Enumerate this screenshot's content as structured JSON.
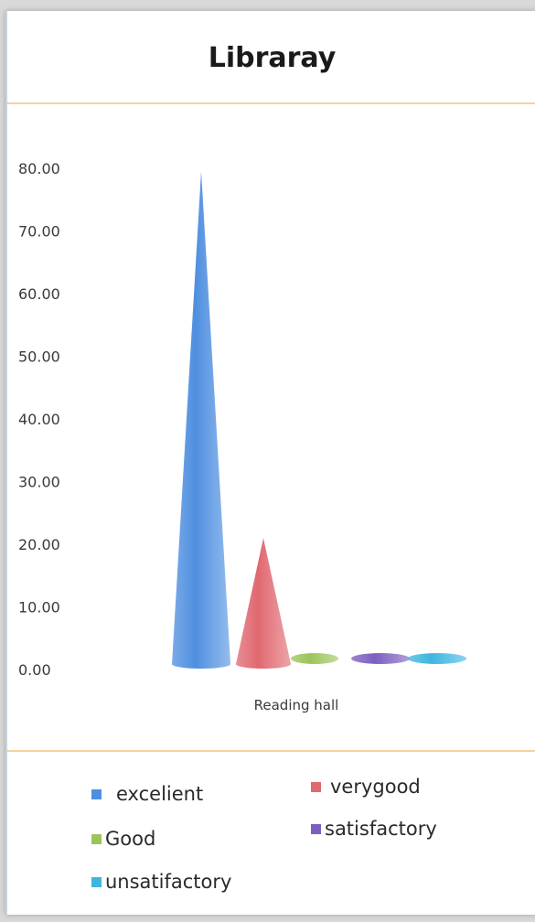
{
  "chart_data": {
    "type": "bar",
    "title": "Libraray",
    "categories": [
      "Reading hall"
    ],
    "series": [
      {
        "name": "excelient",
        "values": [
          79.5
        ],
        "color": "#4f8fe0"
      },
      {
        "name": "verygood",
        "values": [
          21.0
        ],
        "color": "#e06870"
      },
      {
        "name": "Good",
        "values": [
          0.5
        ],
        "color": "#9cc45a"
      },
      {
        "name": "satisfactory",
        "values": [
          0.5
        ],
        "color": "#7c5fbf"
      },
      {
        "name": "unsatifactory",
        "values": [
          0.5
        ],
        "color": "#3fb6e0"
      }
    ],
    "ylim": [
      0,
      80
    ],
    "yticks": [
      "0.00",
      "10.00",
      "20.00",
      "30.00",
      "40.00",
      "50.00",
      "60.00",
      "70.00",
      "80.00"
    ],
    "shape": "cone",
    "grid": false,
    "legend_position": "bottom"
  }
}
